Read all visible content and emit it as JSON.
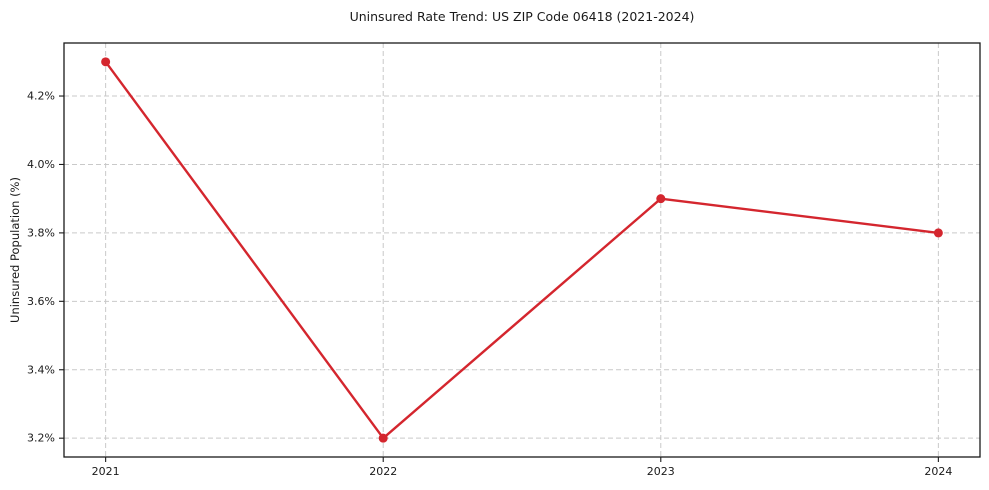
{
  "chart_data": {
    "type": "line",
    "title": "Uninsured Rate Trend: US ZIP Code 06418 (2021-2024)",
    "xlabel": "",
    "ylabel": "Uninsured Population (%)",
    "x": [
      2021,
      2022,
      2023,
      2024
    ],
    "series": [
      {
        "name": "Uninsured Rate",
        "values": [
          4.3,
          3.2,
          3.9,
          3.8
        ]
      }
    ],
    "xticks": [
      {
        "v": 2021,
        "label": "2021"
      },
      {
        "v": 2022,
        "label": "2022"
      },
      {
        "v": 2023,
        "label": "2023"
      },
      {
        "v": 2024,
        "label": "2024"
      }
    ],
    "yticks": [
      {
        "v": 3.2,
        "label": "3.2%"
      },
      {
        "v": 3.4,
        "label": "3.4%"
      },
      {
        "v": 3.6,
        "label": "3.6%"
      },
      {
        "v": 3.8,
        "label": "3.8%"
      },
      {
        "v": 4.0,
        "label": "4.0%"
      },
      {
        "v": 4.2,
        "label": "4.2%"
      }
    ],
    "xlim": [
      2020.85,
      2024.15
    ],
    "ylim": [
      3.145,
      4.355
    ],
    "grid": true,
    "grid_style": "dashed",
    "legend": false,
    "colors": {
      "line": "#d4262e",
      "marker": "#d4262e",
      "grid": "#c9c9c9",
      "spine": "#1a1a1a",
      "tick_text": "#1a1a1a",
      "background": "#ffffff"
    }
  }
}
